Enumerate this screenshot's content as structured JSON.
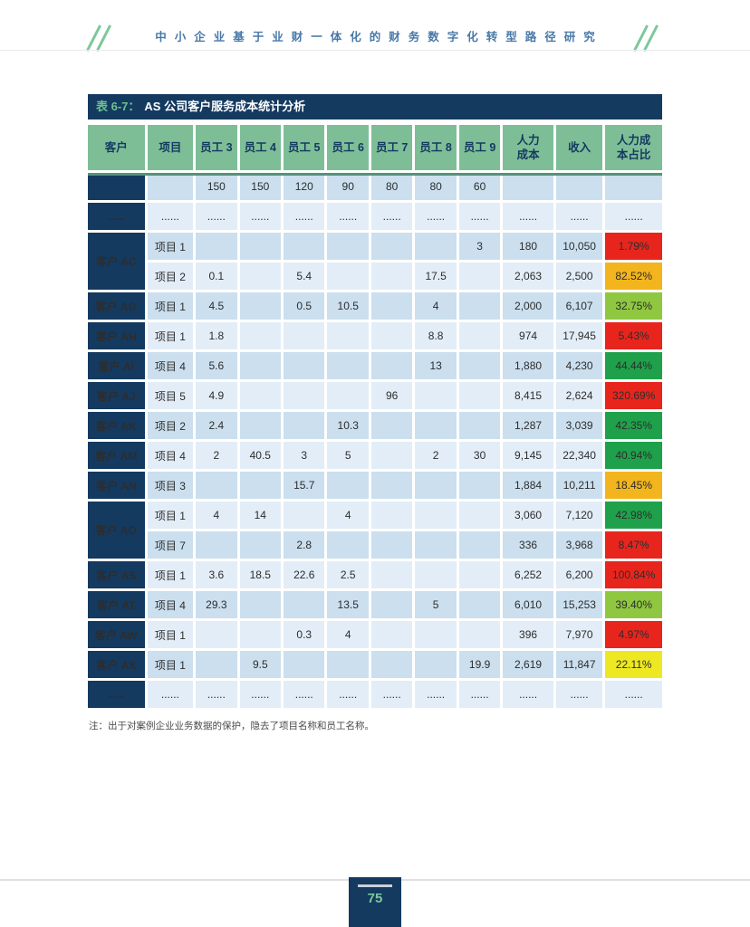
{
  "page": {
    "header_title": "中小企业基于业财一体化的财务数字化转型路径研究",
    "page_number": "75"
  },
  "colors": {
    "navy": "#143A60",
    "header_green": "#7EBE97",
    "header_rule_green": "#53937A",
    "row_shade_dark": "#CBDFEE",
    "row_shade_light": "#E3EDF7",
    "red": "#E8251D",
    "amber": "#F2B51D",
    "yellow_green": "#8FC741",
    "green": "#1FA14B",
    "yellow": "#EDE821",
    "caption_prefix_green": "#6FC290",
    "header_title_blue": "#4878A8",
    "page_number_green": "#7CC89B"
  },
  "table": {
    "caption_prefix": "表 6-7：",
    "caption_title": "AS 公司客户服务成本统计分析",
    "columns": [
      "客户",
      "项目",
      "员工 3",
      "员工 4",
      "员工 5",
      "员工 6",
      "员工 7",
      "员工 8",
      "员工 9",
      "人力\n成本",
      "收入",
      "人力成\n本占比"
    ],
    "groups": [
      {
        "customer": "",
        "rows": [
          {
            "project": "",
            "e": [
              "150",
              "150",
              "120",
              "90",
              "80",
              "80",
              "60"
            ],
            "cost": "",
            "income": "",
            "ratio": "",
            "ratio_color": ""
          }
        ]
      },
      {
        "customer": "......",
        "rows": [
          {
            "project": "......",
            "e": [
              "......",
              "......",
              "......",
              "......",
              "......",
              "......",
              "......"
            ],
            "cost": "......",
            "income": "......",
            "ratio": "......",
            "ratio_color": ""
          }
        ]
      },
      {
        "customer": "客户 AC",
        "rows": [
          {
            "project": "项目 1",
            "e": [
              "",
              "",
              "",
              "",
              "",
              "",
              "3"
            ],
            "cost": "180",
            "income": "10,050",
            "ratio": "1.79%",
            "ratio_color": "red"
          },
          {
            "project": "项目 2",
            "e": [
              "0.1",
              "",
              "5.4",
              "",
              "",
              "17.5",
              ""
            ],
            "cost": "2,063",
            "income": "2,500",
            "ratio": "82.52%",
            "ratio_color": "amber"
          }
        ]
      },
      {
        "customer": "客户 AG",
        "rows": [
          {
            "project": "项目 1",
            "e": [
              "4.5",
              "",
              "0.5",
              "10.5",
              "",
              "4",
              ""
            ],
            "cost": "2,000",
            "income": "6,107",
            "ratio": "32.75%",
            "ratio_color": "yellow_green"
          }
        ]
      },
      {
        "customer": "客户 AH",
        "rows": [
          {
            "project": "项目 1",
            "e": [
              "1.8",
              "",
              "",
              "",
              "",
              "8.8",
              ""
            ],
            "cost": "974",
            "income": "17,945",
            "ratio": "5.43%",
            "ratio_color": "red"
          }
        ]
      },
      {
        "customer": "客户 AI",
        "rows": [
          {
            "project": "项目 4",
            "e": [
              "5.6",
              "",
              "",
              "",
              "",
              "13",
              ""
            ],
            "cost": "1,880",
            "income": "4,230",
            "ratio": "44.44%",
            "ratio_color": "green"
          }
        ]
      },
      {
        "customer": "客户 AJ",
        "rows": [
          {
            "project": "项目 5",
            "e": [
              "4.9",
              "",
              "",
              "",
              "96",
              "",
              ""
            ],
            "cost": "8,415",
            "income": "2,624",
            "ratio": "320.69%",
            "ratio_color": "red"
          }
        ]
      },
      {
        "customer": "客户 AK",
        "rows": [
          {
            "project": "项目 2",
            "e": [
              "2.4",
              "",
              "",
              "10.3",
              "",
              "",
              ""
            ],
            "cost": "1,287",
            "income": "3,039",
            "ratio": "42.35%",
            "ratio_color": "green"
          }
        ]
      },
      {
        "customer": "客户 AM",
        "rows": [
          {
            "project": "项目 4",
            "e": [
              "2",
              "40.5",
              "3",
              "5",
              "",
              "2",
              "30"
            ],
            "cost": "9,145",
            "income": "22,340",
            "ratio": "40.94%",
            "ratio_color": "green"
          }
        ]
      },
      {
        "customer": "客户 AN",
        "rows": [
          {
            "project": "项目 3",
            "e": [
              "",
              "",
              "15.7",
              "",
              "",
              "",
              ""
            ],
            "cost": "1,884",
            "income": "10,211",
            "ratio": "18.45%",
            "ratio_color": "amber"
          }
        ]
      },
      {
        "customer": "客户 AO",
        "rows": [
          {
            "project": "项目 1",
            "e": [
              "4",
              "14",
              "",
              "4",
              "",
              "",
              ""
            ],
            "cost": "3,060",
            "income": "7,120",
            "ratio": "42.98%",
            "ratio_color": "green"
          },
          {
            "project": "项目 7",
            "e": [
              "",
              "",
              "2.8",
              "",
              "",
              "",
              ""
            ],
            "cost": "336",
            "income": "3,968",
            "ratio": "8.47%",
            "ratio_color": "red"
          }
        ]
      },
      {
        "customer": "客户 AS",
        "rows": [
          {
            "project": "项目 1",
            "e": [
              "3.6",
              "18.5",
              "22.6",
              "2.5",
              "",
              "",
              ""
            ],
            "cost": "6,252",
            "income": "6,200",
            "ratio": "100.84%",
            "ratio_color": "red"
          }
        ]
      },
      {
        "customer": "客户 AT",
        "rows": [
          {
            "project": "项目 4",
            "e": [
              "29.3",
              "",
              "",
              "13.5",
              "",
              "5",
              ""
            ],
            "cost": "6,010",
            "income": "15,253",
            "ratio": "39.40%",
            "ratio_color": "yellow_green"
          }
        ]
      },
      {
        "customer": "客户 AW",
        "rows": [
          {
            "project": "项目 1",
            "e": [
              "",
              "",
              "0.3",
              "4",
              "",
              "",
              ""
            ],
            "cost": "396",
            "income": "7,970",
            "ratio": "4.97%",
            "ratio_color": "red"
          }
        ]
      },
      {
        "customer": "客户 AX",
        "rows": [
          {
            "project": "项目 1",
            "e": [
              "",
              "9.5",
              "",
              "",
              "",
              "",
              "19.9"
            ],
            "cost": "2,619",
            "income": "11,847",
            "ratio": "22.11%",
            "ratio_color": "yellow"
          }
        ]
      },
      {
        "customer": "......",
        "rows": [
          {
            "project": "......",
            "e": [
              "......",
              "......",
              "......",
              "......",
              "......",
              "......",
              "......"
            ],
            "cost": "......",
            "income": "......",
            "ratio": "......",
            "ratio_color": ""
          }
        ]
      }
    ]
  },
  "note": "注：出于对案例企业业务数据的保护，隐去了项目名称和员工名称。"
}
